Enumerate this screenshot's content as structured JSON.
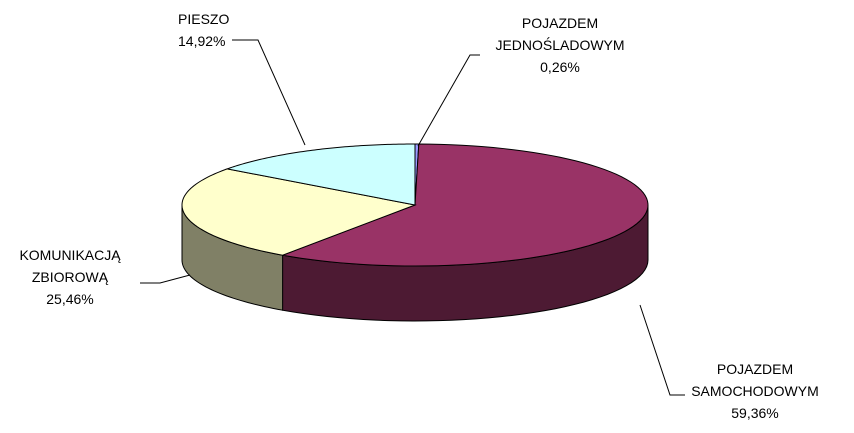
{
  "chart_data": {
    "type": "pie",
    "categories": [
      "POJAZDEM JEDNOŚLADOWYM",
      "POJAZDEM SAMOCHODOWYM",
      "KOMUNIKACJĄ ZBIOROWĄ",
      "PIESZO"
    ],
    "values": [
      0.26,
      59.36,
      25.46,
      14.92
    ],
    "value_labels": [
      "0,26%",
      "59,36%",
      "25,46%",
      "14,92%"
    ],
    "colors": [
      "#9999ff",
      "#993366",
      "#ffffcc",
      "#ccffff"
    ],
    "three_d": true
  }
}
